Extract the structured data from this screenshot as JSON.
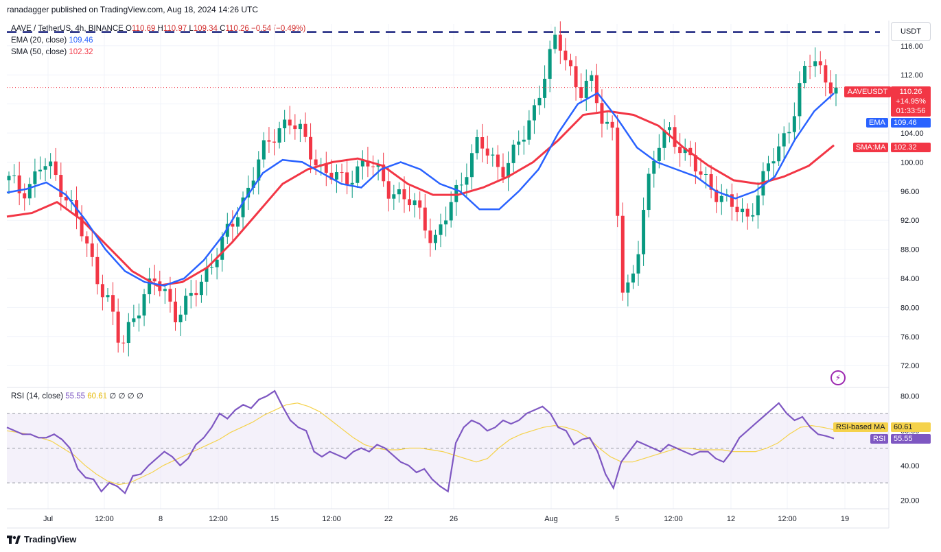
{
  "header": {
    "publisher": "ranadagger published on TradingView.com, Aug 18, 2024 14:26 UTC"
  },
  "legend": {
    "symbol": "AAVE / TetherUS, 4h, BINANCE",
    "o_label": "O",
    "o_val": "110.69",
    "h_label": "H",
    "h_val": "110.97",
    "l_label": "L",
    "l_val": "109.34",
    "c_label": "C",
    "c_val": "110.26",
    "change": "−0.54 (−0.49%)",
    "ema_label": "EMA (20, close)",
    "ema_val": "109.46",
    "sma_label": "SMA (50, close)",
    "sma_val": "102.32",
    "rsi_label": "RSI (14, close)",
    "rsi_val": "55.55",
    "rsi_ma_val": "60.61",
    "rsi_extra": "∅ ∅ ∅ ∅"
  },
  "currency_button": "USDT",
  "price_tags": {
    "symbol": "AAVEUSDT",
    "price": "110.26",
    "pct": "+14.95%",
    "countdown": "01:33:56",
    "ema_tag": "EMA",
    "ema_val": "109.46",
    "sma_tag": "SMA:MA",
    "sma_val": "102.32",
    "rsi_ma_tag": "RSI-based MA",
    "rsi_ma_val": "60.61",
    "rsi_tag": "RSI",
    "rsi_val": "55.55"
  },
  "colors": {
    "up": "#089981",
    "down": "#f23645",
    "ema": "#2962ff",
    "sma": "#f23645",
    "rsi": "#7e57c2",
    "rsi_ma": "#f5d24b",
    "resistance": "#1a237e"
  },
  "branding": "TradingView",
  "chart_data": [
    {
      "type": "candlestick",
      "title": "AAVE / TetherUS, 4h, BINANCE",
      "ylim": [
        69,
        119
      ],
      "y_ticks": [
        72,
        76,
        80,
        84,
        88,
        92,
        96,
        100,
        104,
        108,
        112,
        116
      ],
      "y_tick_labels": [
        "72.00",
        "76.00",
        "80.00",
        "84.00",
        "88.00",
        "92.00",
        "96.00",
        "100.00",
        "104.00",
        "108.00",
        "112.00",
        "116.00"
      ],
      "x_tick_labels": [
        "Jul",
        "12:00",
        "8",
        "12:00",
        "15",
        "12:00",
        "22",
        "26",
        "Aug",
        "5",
        "12:00",
        "12",
        "12:00",
        "19"
      ],
      "resistance_level": 117.9,
      "last_price": 110.26,
      "close_path": [
        97.5,
        96.0,
        97.2,
        99.8,
        98.5,
        95.8,
        92.5,
        88.0,
        84.0,
        80.5,
        74.0,
        78.5,
        81.5,
        83.5,
        82.0,
        79.0,
        80.5,
        83.0,
        86.0,
        88.5,
        91.5,
        95.0,
        99.0,
        102.0,
        104.5,
        106.0,
        104.0,
        101.5,
        99.0,
        98.0,
        97.2,
        99.0,
        100.0,
        98.5,
        96.5,
        95.2,
        94.2,
        93.0,
        88.5,
        92.0,
        96.0,
        99.5,
        102.5,
        101.0,
        99.0,
        100.5,
        103.5,
        107.5,
        112.5,
        117.0,
        114.0,
        109.5,
        111.0,
        106.5,
        104.5,
        80.0,
        85.0,
        96.5,
        102.0,
        104.0,
        102.5,
        100.5,
        97.5,
        96.5,
        95.0,
        93.5,
        92.0,
        96.0,
        99.5,
        102.0,
        106.0,
        111.5,
        114.5,
        111.5,
        110.26
      ],
      "ema20": [
        95.8,
        96.3,
        97.2,
        95.5,
        92.0,
        88.0,
        85.0,
        83.5,
        83.0,
        84.0,
        86.5,
        90.0,
        94.5,
        98.5,
        100.3,
        100.0,
        98.5,
        97.0,
        96.5,
        99.0,
        100.0,
        99.0,
        97.0,
        96.0,
        93.5,
        93.5,
        96.0,
        99.0,
        104.0,
        108.0,
        109.5,
        106.0,
        102.0,
        100.0,
        99.0,
        98.0,
        96.0,
        95.0,
        96.0,
        98.0,
        103.0,
        107.0,
        109.46
      ],
      "sma50": [
        92.5,
        93.0,
        94.5,
        92.0,
        88.5,
        85.0,
        83.0,
        83.5,
        85.5,
        89.0,
        93.0,
        97.0,
        99.0,
        100.0,
        100.5,
        99.5,
        97.0,
        95.5,
        95.5,
        96.5,
        98.0,
        100.0,
        103.0,
        106.5,
        107.0,
        106.5,
        105.0,
        102.0,
        99.5,
        97.5,
        97.0,
        98.0,
        99.5,
        102.32
      ]
    },
    {
      "type": "line",
      "title": "RSI (14, close)",
      "ylim": [
        15,
        85
      ],
      "y_ticks": [
        20,
        40,
        60,
        80
      ],
      "y_tick_labels": [
        "20.00",
        "40.00",
        "60.00",
        "80.00"
      ],
      "band_upper": 70,
      "band_lower": 30,
      "mid": 50,
      "rsi": [
        62,
        60,
        58,
        58,
        56,
        56,
        58,
        55,
        50,
        38,
        33,
        32,
        25,
        30,
        28,
        24,
        34,
        35,
        40,
        44,
        48,
        45,
        40,
        44,
        52,
        56,
        62,
        70,
        67,
        72,
        75,
        73,
        78,
        80,
        83,
        74,
        66,
        62,
        60,
        48,
        45,
        48,
        46,
        44,
        48,
        50,
        48,
        52,
        50,
        46,
        42,
        40,
        36,
        38,
        32,
        28,
        25,
        53,
        62,
        66,
        64,
        60,
        62,
        66,
        64,
        66,
        70,
        72,
        74,
        70,
        62,
        60,
        52,
        55,
        56,
        48,
        35,
        27,
        42,
        48,
        54,
        52,
        50,
        48,
        52,
        50,
        48,
        46,
        48,
        48,
        44,
        42,
        48,
        56,
        60,
        64,
        68,
        72,
        76,
        70,
        66,
        68,
        62,
        58,
        57,
        55.55
      ],
      "rsi_ma": [
        60,
        59,
        58,
        56,
        54,
        50,
        46,
        40,
        35,
        31,
        29,
        30,
        33,
        36,
        40,
        43,
        46,
        49,
        52,
        55,
        59,
        62,
        65,
        69,
        72,
        75,
        76,
        74,
        71,
        66,
        61,
        56,
        52,
        50,
        49,
        49,
        50,
        50,
        49,
        48,
        46,
        44,
        42,
        44,
        50,
        55,
        58,
        60,
        62,
        63,
        62,
        60,
        56,
        50,
        45,
        42,
        42,
        44,
        46,
        48,
        50,
        50,
        49,
        49,
        49,
        48,
        48,
        48,
        50,
        53,
        58,
        62,
        63,
        62,
        60.61
      ]
    }
  ]
}
